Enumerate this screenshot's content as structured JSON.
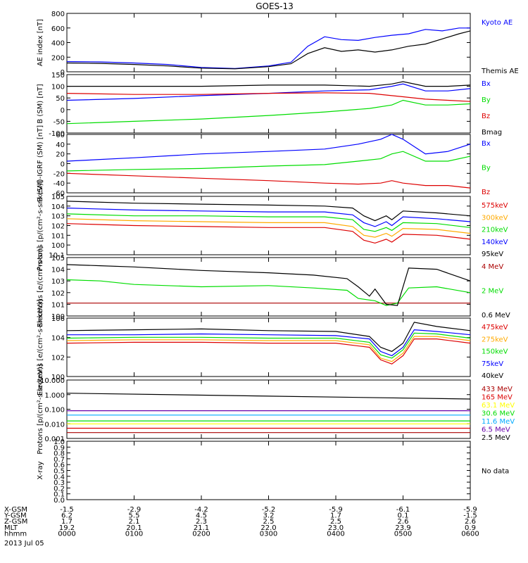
{
  "title": "GOES-13",
  "date_label": "2013 Jul 05",
  "x_axis": {
    "times": [
      "0000",
      "0100",
      "0200",
      "0300",
      "0400",
      "0500",
      "0600"
    ],
    "rows": [
      {
        "label": "X-GSM",
        "values": [
          "-1.5",
          "-2.9",
          "-4.2",
          "-5.2",
          "-5.9",
          "-6.1",
          "-5.9"
        ]
      },
      {
        "label": "Y-GSM",
        "values": [
          "6.2",
          "5.5",
          "4.5",
          "3.2",
          "1.7",
          "0.1",
          "-1.5"
        ]
      },
      {
        "label": "Z-GSM",
        "values": [
          "1.7",
          "2.1",
          "2.3",
          "2.5",
          "2.5",
          "2.6",
          "2.6"
        ]
      },
      {
        "label": "MLT",
        "values": [
          "19.2",
          "20.1",
          "21.1",
          "22.0",
          "23.0",
          "23.9",
          "0.9"
        ]
      },
      {
        "label": "hhmm",
        "values": [
          "0000",
          "0100",
          "0200",
          "0300",
          "0400",
          "0500",
          "0600"
        ]
      }
    ]
  },
  "chart_data": [
    {
      "type": "line",
      "ylabel": "AE index [nT]",
      "ylim": [
        0,
        800
      ],
      "scale": "linear",
      "yticks": [
        "0",
        "200",
        "400",
        "600",
        "800"
      ],
      "series": [
        {
          "name": "Kyoto AE",
          "color": "#0000ff",
          "x": [
            0,
            30,
            60,
            90,
            120,
            150,
            180,
            200,
            215,
            230,
            245,
            260,
            275,
            290,
            305,
            320,
            335,
            350,
            360
          ],
          "y": [
            140,
            135,
            120,
            100,
            60,
            45,
            80,
            130,
            350,
            480,
            440,
            430,
            470,
            500,
            520,
            580,
            560,
            600,
            600
          ]
        },
        {
          "name": "Themis AE",
          "color": "#000000",
          "x": [
            0,
            30,
            60,
            90,
            120,
            150,
            180,
            200,
            215,
            230,
            245,
            260,
            275,
            290,
            305,
            320,
            335,
            350,
            360
          ],
          "y": [
            120,
            115,
            100,
            80,
            50,
            40,
            70,
            110,
            250,
            330,
            280,
            300,
            270,
            300,
            350,
            380,
            450,
            520,
            560
          ]
        }
      ]
    },
    {
      "type": "line",
      "ylabel": "B (SM) [nT]",
      "ylim": [
        -100,
        150
      ],
      "scale": "linear",
      "yticks": [
        "-100",
        "-50",
        "0",
        "50",
        "100",
        "150"
      ],
      "series": [
        {
          "name": "Bx",
          "color": "#0000ff",
          "x": [
            0,
            60,
            120,
            180,
            230,
            270,
            290,
            300,
            320,
            340,
            360
          ],
          "y": [
            40,
            48,
            60,
            70,
            80,
            85,
            100,
            110,
            80,
            80,
            90
          ]
        },
        {
          "name": "By",
          "color": "#00dd00",
          "x": [
            0,
            60,
            120,
            180,
            230,
            270,
            290,
            300,
            320,
            340,
            360
          ],
          "y": [
            -60,
            -50,
            -40,
            -25,
            -10,
            5,
            20,
            40,
            20,
            20,
            25
          ]
        },
        {
          "name": "Bz",
          "color": "#dd0000",
          "x": [
            0,
            60,
            120,
            180,
            230,
            270,
            290,
            300,
            320,
            340,
            360
          ],
          "y": [
            70,
            65,
            65,
            70,
            72,
            70,
            60,
            55,
            45,
            40,
            35
          ]
        },
        {
          "name": "Bmag",
          "color": "#000000",
          "x": [
            0,
            60,
            120,
            180,
            230,
            270,
            290,
            300,
            320,
            340,
            360
          ],
          "y": [
            100,
            100,
            100,
            105,
            105,
            100,
            110,
            120,
            100,
            100,
            105
          ]
        }
      ]
    },
    {
      "type": "line",
      "ylabel": "B (SM)-IGRF (SM) [nT]",
      "ylim": [
        -60,
        60
      ],
      "scale": "linear",
      "yticks": [
        "-60",
        "-40",
        "-20",
        "0",
        "20",
        "40",
        "60"
      ],
      "series": [
        {
          "name": "Bx",
          "color": "#0000ff",
          "x": [
            0,
            60,
            120,
            180,
            230,
            260,
            280,
            290,
            300,
            320,
            340,
            360
          ],
          "y": [
            5,
            12,
            20,
            25,
            30,
            40,
            50,
            60,
            50,
            20,
            25,
            40
          ]
        },
        {
          "name": "By",
          "color": "#00dd00",
          "x": [
            0,
            60,
            120,
            180,
            230,
            260,
            280,
            290,
            300,
            320,
            340,
            360
          ],
          "y": [
            -15,
            -12,
            -10,
            -5,
            -2,
            5,
            10,
            20,
            25,
            5,
            5,
            15
          ]
        },
        {
          "name": "Bz",
          "color": "#dd0000",
          "x": [
            0,
            60,
            120,
            180,
            230,
            260,
            280,
            290,
            300,
            320,
            340,
            360
          ],
          "y": [
            -20,
            -25,
            -30,
            -35,
            -40,
            -42,
            -40,
            -35,
            -40,
            -45,
            -45,
            -50
          ]
        }
      ]
    },
    {
      "type": "line",
      "ylabel": "Protons [p/(cm²-s-sr-keV)]",
      "ylim": [
        -1,
        5
      ],
      "scale": "log10",
      "yticks": [
        "10-1",
        "100",
        "101",
        "102",
        "103",
        "104",
        "105"
      ],
      "series": [
        {
          "name": "575keV",
          "color": "#dd0000",
          "x": [
            0,
            60,
            120,
            180,
            230,
            255,
            265,
            275,
            285,
            290,
            300,
            330,
            360
          ],
          "y": [
            2.2,
            2.0,
            1.9,
            1.8,
            1.8,
            1.4,
            0.5,
            0.2,
            0.6,
            0.3,
            1.1,
            1.0,
            0.6
          ]
        },
        {
          "name": "300keV",
          "color": "#ffaa00",
          "x": [
            0,
            60,
            120,
            180,
            230,
            255,
            265,
            275,
            285,
            290,
            300,
            330,
            360
          ],
          "y": [
            2.7,
            2.5,
            2.4,
            2.3,
            2.3,
            1.9,
            1.0,
            0.8,
            1.2,
            0.9,
            1.7,
            1.6,
            1.2
          ]
        },
        {
          "name": "210keV",
          "color": "#00dd00",
          "x": [
            0,
            60,
            120,
            180,
            230,
            255,
            265,
            275,
            285,
            290,
            300,
            330,
            360
          ],
          "y": [
            3.2,
            3.0,
            3.0,
            2.9,
            2.9,
            2.6,
            1.6,
            1.4,
            1.8,
            1.5,
            2.3,
            2.2,
            1.8
          ]
        },
        {
          "name": "140keV",
          "color": "#0000ff",
          "x": [
            0,
            60,
            120,
            180,
            230,
            255,
            265,
            275,
            285,
            290,
            300,
            330,
            360
          ],
          "y": [
            3.8,
            3.6,
            3.5,
            3.4,
            3.4,
            3.1,
            2.3,
            1.9,
            2.4,
            2.0,
            2.9,
            2.7,
            2.4
          ]
        },
        {
          "name": "95keV",
          "color": "#000000",
          "x": [
            0,
            60,
            120,
            180,
            230,
            255,
            265,
            275,
            285,
            290,
            300,
            330,
            360
          ],
          "y": [
            4.5,
            4.3,
            4.2,
            4.1,
            4.0,
            3.8,
            3.0,
            2.5,
            3.0,
            2.6,
            3.5,
            3.3,
            3.0
          ]
        }
      ]
    },
    {
      "type": "line",
      "ylabel": "Electrons [e/(cm²-s-sr)]",
      "ylim": [
        0,
        5
      ],
      "scale": "log10",
      "yticks": [
        "100",
        "101",
        "102",
        "103",
        "104",
        "105"
      ],
      "series": [
        {
          "name": "4 MeV",
          "color": "#aa0000",
          "x": [
            0,
            60,
            120,
            180,
            240,
            270,
            300,
            330,
            360
          ],
          "y": [
            1.1,
            1.1,
            1.1,
            1.1,
            1.1,
            1.1,
            1.1,
            1.1,
            1.1
          ]
        },
        {
          "name": "2 MeV",
          "color": "#00dd00",
          "x": [
            0,
            30,
            60,
            120,
            180,
            220,
            250,
            260,
            275,
            285,
            295,
            305,
            330,
            360
          ],
          "y": [
            3.1,
            3.0,
            2.7,
            2.5,
            2.6,
            2.4,
            2.2,
            1.5,
            1.3,
            0.9,
            1.1,
            2.4,
            2.5,
            2.0
          ]
        },
        {
          "name": "0.6 MeV",
          "color": "#000000",
          "x": [
            0,
            30,
            60,
            120,
            180,
            220,
            250,
            260,
            270,
            275,
            285,
            295,
            305,
            330,
            360
          ],
          "y": [
            4.4,
            4.3,
            4.2,
            3.9,
            3.7,
            3.5,
            3.2,
            2.5,
            1.7,
            2.3,
            1.0,
            0.9,
            4.1,
            4.0,
            3.0
          ]
        }
      ]
    },
    {
      "type": "line",
      "ylabel": "Electrons [e/(cm²-s-sr-keV)]",
      "ylim": [
        0,
        7
      ],
      "scale": "log10",
      "yticks": [
        "100",
        "102",
        "104",
        "106"
      ],
      "series": [
        {
          "name": "475keV",
          "color": "#dd0000",
          "x": [
            0,
            60,
            120,
            180,
            240,
            270,
            280,
            290,
            300,
            310,
            330,
            360
          ],
          "y": [
            4.0,
            4.1,
            4.1,
            4.0,
            4.0,
            3.5,
            2.0,
            1.5,
            2.5,
            4.5,
            4.5,
            4.0
          ]
        },
        {
          "name": "275keV",
          "color": "#ffaa00",
          "x": [
            0,
            60,
            120,
            180,
            240,
            270,
            280,
            290,
            300,
            310,
            330,
            360
          ],
          "y": [
            4.3,
            4.4,
            4.4,
            4.3,
            4.3,
            3.8,
            2.2,
            1.8,
            2.8,
            4.8,
            4.8,
            4.3
          ]
        },
        {
          "name": "150keV",
          "color": "#00dd00",
          "x": [
            0,
            60,
            120,
            180,
            240,
            270,
            280,
            290,
            300,
            310,
            330,
            360
          ],
          "y": [
            4.6,
            4.7,
            4.7,
            4.6,
            4.6,
            4.1,
            2.6,
            2.2,
            3.2,
            5.2,
            5.1,
            4.6
          ]
        },
        {
          "name": "75keV",
          "color": "#0000ff",
          "x": [
            0,
            60,
            120,
            180,
            240,
            270,
            280,
            290,
            300,
            310,
            330,
            360
          ],
          "y": [
            5.0,
            5.0,
            5.1,
            5.0,
            4.9,
            4.5,
            3.0,
            2.5,
            3.5,
            5.6,
            5.4,
            5.0
          ]
        },
        {
          "name": "40keV",
          "color": "#000000",
          "x": [
            0,
            60,
            120,
            180,
            240,
            270,
            280,
            290,
            300,
            310,
            330,
            360
          ],
          "y": [
            5.5,
            5.6,
            5.7,
            5.5,
            5.4,
            4.8,
            3.5,
            3.0,
            4.0,
            6.5,
            6.0,
            5.5
          ]
        }
      ]
    },
    {
      "type": "line",
      "ylabel": "Protons [p/(cm²-s-sr-keV)]",
      "ylim": [
        -3,
        1
      ],
      "scale": "log10",
      "yticks": [
        "0.001",
        "0.010",
        "0.100",
        "1.000",
        "10.000"
      ],
      "series": [
        {
          "name": "433 MeV",
          "color": "#aa0000",
          "x": [
            0,
            360
          ],
          "y": [
            -2.6,
            -2.6
          ]
        },
        {
          "name": "165 MeV",
          "color": "#dd0000",
          "x": [
            0,
            360
          ],
          "y": [
            -2.3,
            -2.3
          ]
        },
        {
          "name": "63.1 MeV",
          "color": "#ffff00",
          "x": [
            0,
            360
          ],
          "y": [
            -2.0,
            -2.0
          ]
        },
        {
          "name": "30.6 MeV",
          "color": "#00dd00",
          "x": [
            0,
            360
          ],
          "y": [
            -1.8,
            -1.8
          ]
        },
        {
          "name": "11.6 MeV",
          "color": "#00aaff",
          "x": [
            0,
            360
          ],
          "y": [
            -1.4,
            -1.4
          ]
        },
        {
          "name": "6.5 MeV",
          "color": "#6600aa",
          "x": [
            0,
            360
          ],
          "y": [
            -1.1,
            -1.1
          ]
        },
        {
          "name": "2.5 MeV",
          "color": "#000000",
          "x": [
            0,
            360
          ],
          "y": [
            0.1,
            -0.3
          ]
        }
      ]
    },
    {
      "type": "line",
      "ylabel": "X-ray",
      "ylim": [
        0,
        1.0
      ],
      "scale": "linear",
      "yticks": [
        "0.0",
        "0.1",
        "0.2",
        "0.3",
        "0.4",
        "0.5",
        "0.6",
        "0.7",
        "0.8",
        "0.9",
        "1.0"
      ],
      "no_data": "No data",
      "series": []
    }
  ]
}
